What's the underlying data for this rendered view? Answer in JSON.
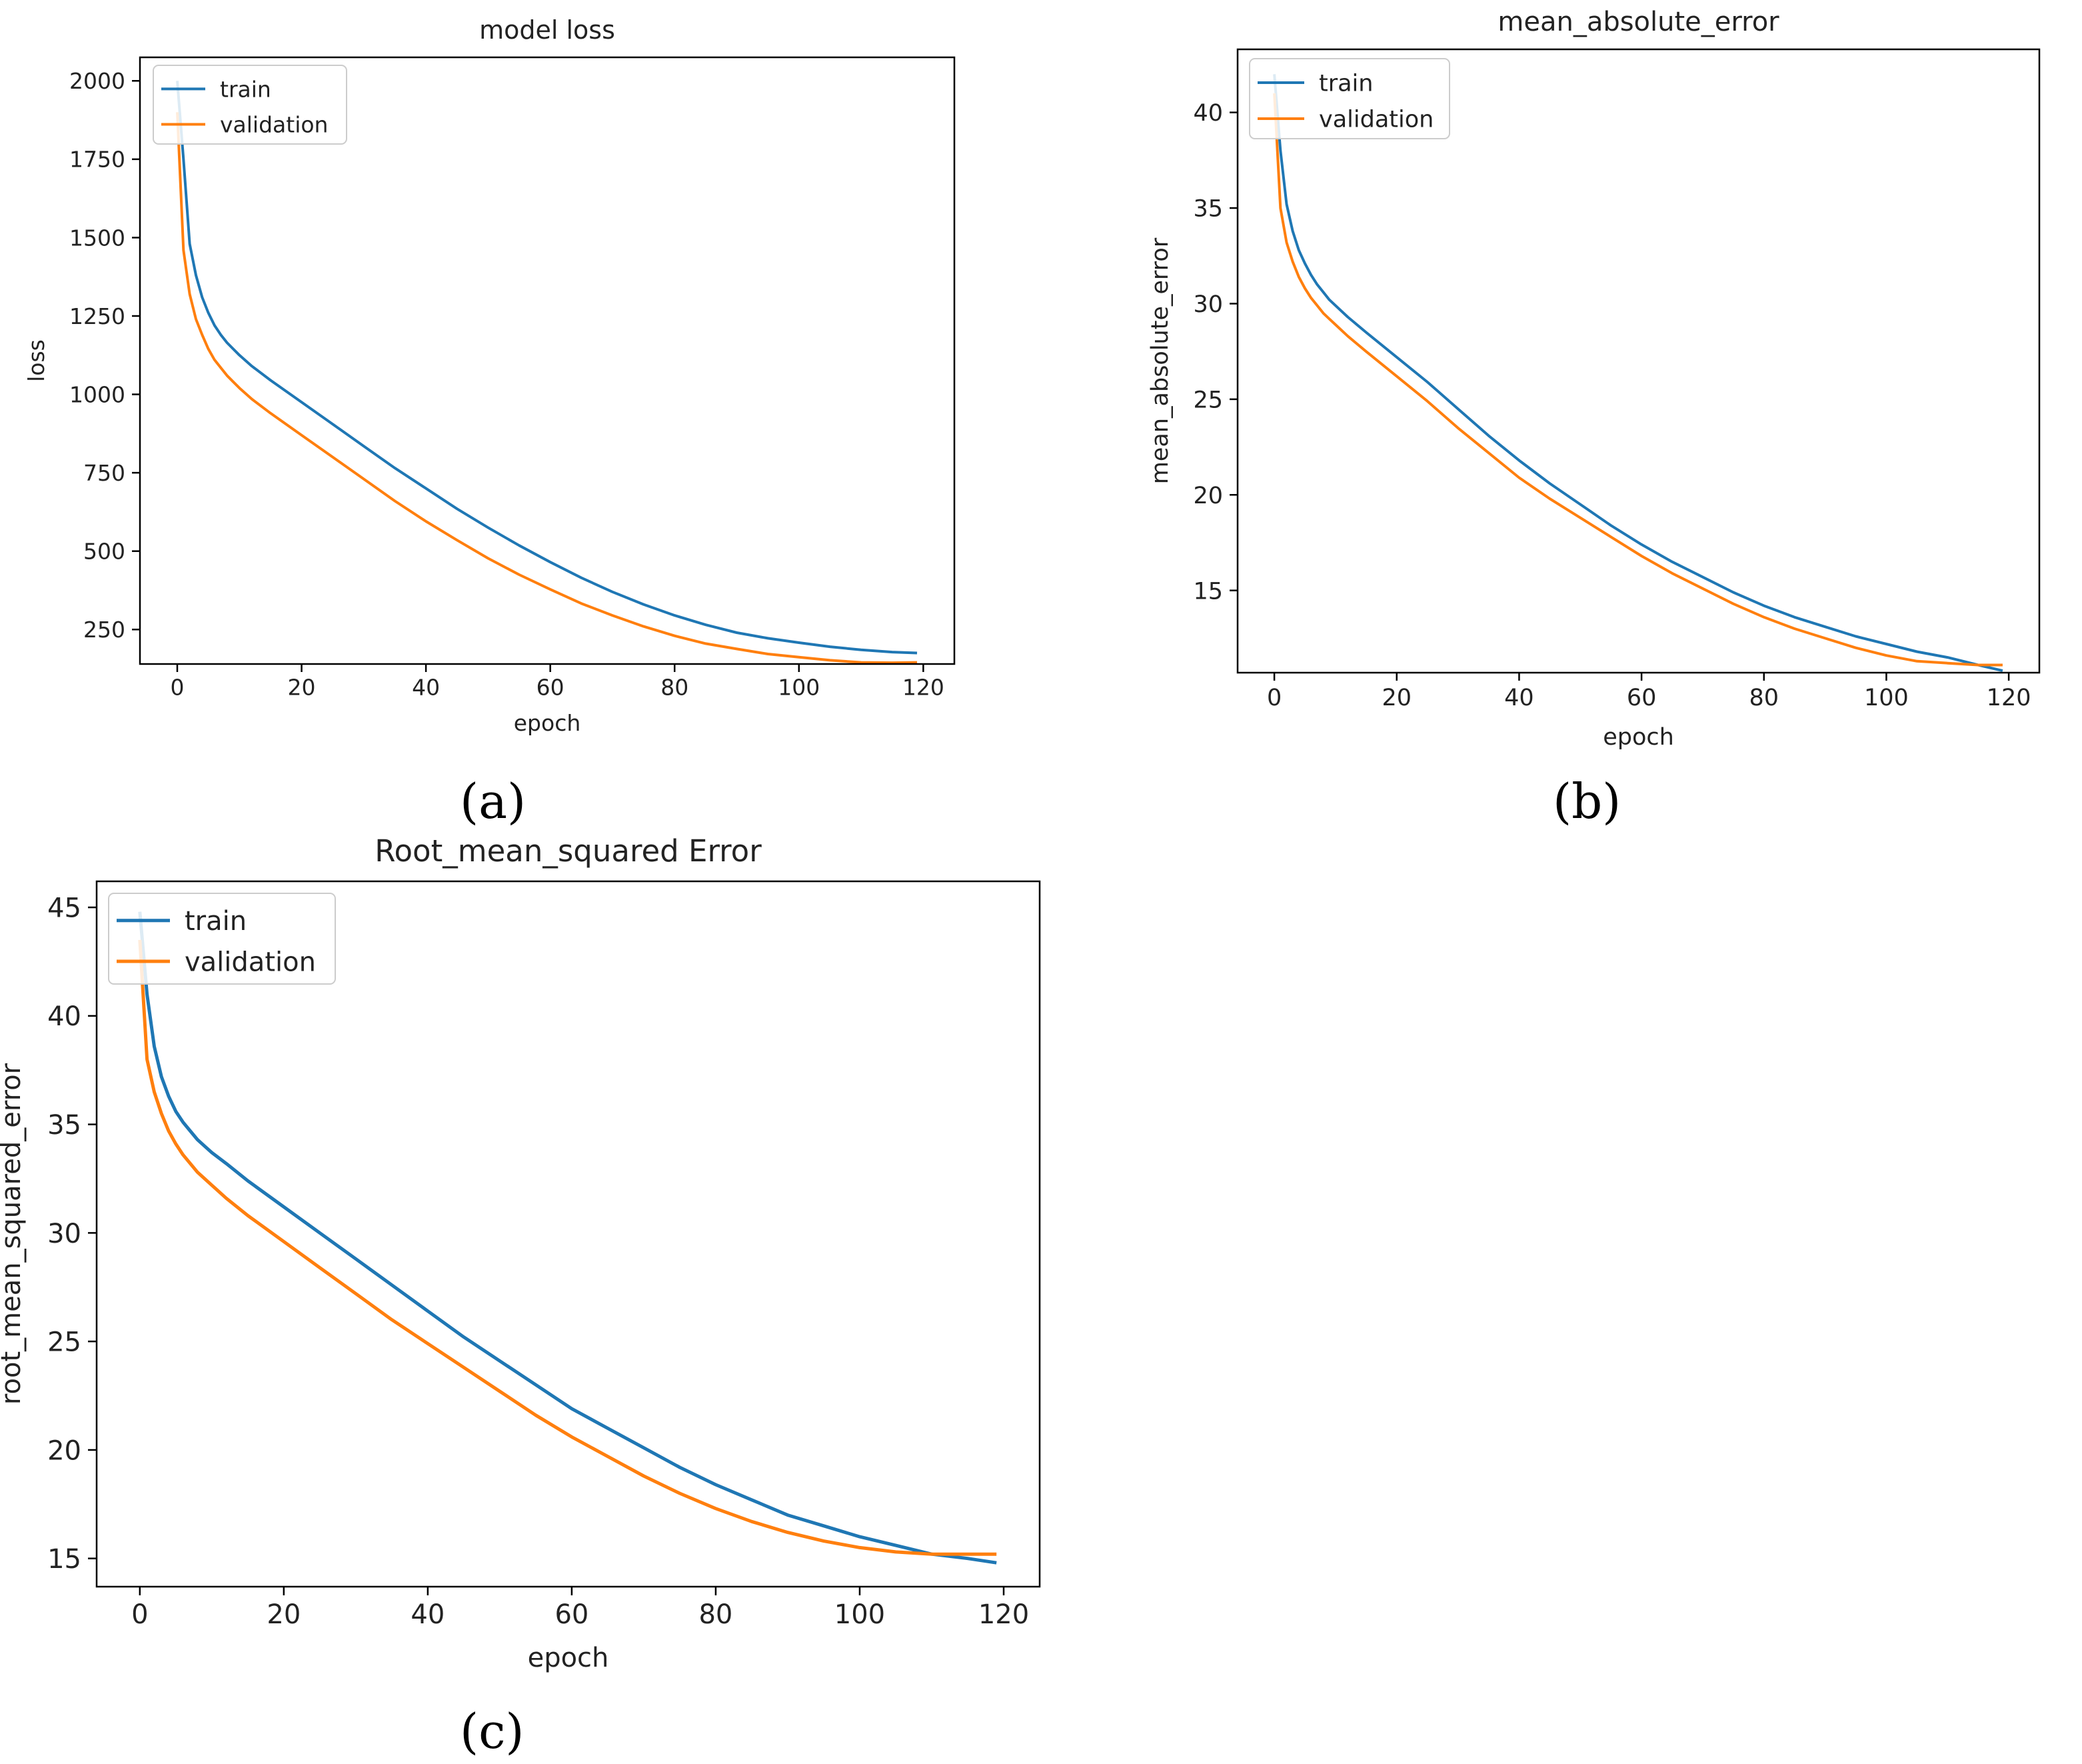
{
  "colors": {
    "train": "#1f77b4",
    "validation": "#ff7f0e",
    "axis": "#000000",
    "legendBorder": "#cccccc"
  },
  "chart_data": [
    {
      "type": "line",
      "panel_label": "(a)",
      "title": "model loss",
      "xlabel": "epoch",
      "ylabel": "loss",
      "xlim": [
        -6,
        125
      ],
      "ylim": [
        140,
        2075
      ],
      "xticks": [
        0,
        20,
        40,
        60,
        80,
        100,
        120
      ],
      "yticks": [
        250,
        500,
        750,
        1000,
        1250,
        1500,
        1750,
        2000
      ],
      "ytick_labels": [
        "250",
        "500",
        "750",
        "1000",
        "1250",
        "1500",
        "1750",
        "2000"
      ],
      "grid": false,
      "legend_loc": "upper-left",
      "series": [
        {
          "name": "train",
          "x": [
            0,
            1,
            2,
            3,
            4,
            5,
            6,
            7,
            8,
            9,
            10,
            12,
            15,
            20,
            25,
            30,
            35,
            40,
            45,
            50,
            55,
            60,
            65,
            70,
            75,
            80,
            85,
            90,
            95,
            100,
            105,
            110,
            115,
            119
          ],
          "values": [
            2000,
            1750,
            1480,
            1380,
            1310,
            1260,
            1220,
            1190,
            1165,
            1145,
            1125,
            1090,
            1045,
            975,
            905,
            835,
            765,
            700,
            635,
            575,
            518,
            465,
            415,
            370,
            330,
            295,
            265,
            240,
            222,
            208,
            195,
            185,
            178,
            175
          ]
        },
        {
          "name": "validation",
          "x": [
            0,
            1,
            2,
            3,
            4,
            5,
            6,
            7,
            8,
            9,
            10,
            12,
            15,
            20,
            25,
            30,
            35,
            40,
            45,
            50,
            55,
            60,
            65,
            70,
            75,
            80,
            85,
            90,
            95,
            100,
            105,
            110,
            115,
            119
          ],
          "values": [
            1900,
            1460,
            1320,
            1240,
            1190,
            1145,
            1110,
            1085,
            1060,
            1040,
            1020,
            985,
            940,
            870,
            800,
            730,
            660,
            595,
            535,
            477,
            425,
            378,
            333,
            295,
            260,
            230,
            205,
            188,
            172,
            162,
            152,
            145,
            144,
            145
          ]
        }
      ]
    },
    {
      "type": "line",
      "panel_label": "(b)",
      "title": "mean_absolute_error",
      "xlabel": "epoch",
      "ylabel": "mean_absolute_error",
      "xlim": [
        -6,
        125
      ],
      "ylim": [
        10.7,
        43.3
      ],
      "xticks": [
        0,
        20,
        40,
        60,
        80,
        100,
        120
      ],
      "yticks": [
        15,
        20,
        25,
        30,
        35,
        40
      ],
      "ytick_labels": [
        "15",
        "20",
        "25",
        "30",
        "35",
        "40"
      ],
      "grid": false,
      "legend_loc": "upper-left",
      "series": [
        {
          "name": "train",
          "x": [
            0,
            1,
            2,
            3,
            4,
            5,
            6,
            7,
            8,
            9,
            10,
            12,
            15,
            20,
            25,
            30,
            35,
            40,
            45,
            50,
            55,
            60,
            65,
            70,
            75,
            80,
            85,
            90,
            95,
            100,
            105,
            110,
            115,
            119
          ],
          "values": [
            42,
            38,
            35.2,
            33.8,
            32.8,
            32.1,
            31.5,
            31,
            30.6,
            30.2,
            29.9,
            29.3,
            28.5,
            27.2,
            25.9,
            24.5,
            23.1,
            21.8,
            20.6,
            19.5,
            18.4,
            17.4,
            16.5,
            15.7,
            14.9,
            14.2,
            13.6,
            13.1,
            12.6,
            12.2,
            11.8,
            11.5,
            11.1,
            10.8
          ]
        },
        {
          "name": "validation",
          "x": [
            0,
            1,
            2,
            3,
            4,
            5,
            6,
            7,
            8,
            9,
            10,
            12,
            15,
            20,
            25,
            30,
            35,
            40,
            45,
            50,
            55,
            60,
            65,
            70,
            75,
            80,
            85,
            90,
            95,
            100,
            105,
            110,
            115,
            119
          ],
          "values": [
            41,
            35,
            33.2,
            32.2,
            31.4,
            30.8,
            30.3,
            29.9,
            29.5,
            29.2,
            28.9,
            28.3,
            27.5,
            26.2,
            24.9,
            23.5,
            22.2,
            20.9,
            19.8,
            18.8,
            17.8,
            16.8,
            15.9,
            15.1,
            14.3,
            13.6,
            13,
            12.5,
            12,
            11.6,
            11.3,
            11.2,
            11.1,
            11.1
          ]
        }
      ]
    },
    {
      "type": "line",
      "panel_label": "(c)",
      "title": "Root_mean_squared Error",
      "xlabel": "epoch",
      "ylabel": "root_mean_squared_error",
      "xlim": [
        -6,
        125
      ],
      "ylim": [
        13.7,
        46.2
      ],
      "xticks": [
        0,
        20,
        40,
        60,
        80,
        100,
        120
      ],
      "yticks": [
        15,
        20,
        25,
        30,
        35,
        40,
        45
      ],
      "ytick_labels": [
        "15",
        "20",
        "25",
        "30",
        "35",
        "40",
        "45"
      ],
      "grid": false,
      "legend_loc": "upper-left",
      "series": [
        {
          "name": "train",
          "x": [
            0,
            1,
            2,
            3,
            4,
            5,
            6,
            7,
            8,
            9,
            10,
            12,
            15,
            20,
            25,
            30,
            35,
            40,
            45,
            50,
            55,
            60,
            65,
            70,
            75,
            80,
            85,
            90,
            95,
            100,
            105,
            110,
            115,
            119
          ],
          "values": [
            44.8,
            41,
            38.6,
            37.2,
            36.3,
            35.6,
            35.1,
            34.7,
            34.3,
            34,
            33.7,
            33.2,
            32.4,
            31.2,
            30,
            28.8,
            27.6,
            26.4,
            25.2,
            24.1,
            23,
            21.9,
            21,
            20.1,
            19.2,
            18.4,
            17.7,
            17,
            16.5,
            16,
            15.6,
            15.2,
            15,
            14.8
          ]
        },
        {
          "name": "validation",
          "x": [
            0,
            1,
            2,
            3,
            4,
            5,
            6,
            7,
            8,
            9,
            10,
            12,
            15,
            20,
            25,
            30,
            35,
            40,
            45,
            50,
            55,
            60,
            65,
            70,
            75,
            80,
            85,
            90,
            95,
            100,
            105,
            110,
            115,
            119
          ],
          "values": [
            43.5,
            38,
            36.5,
            35.5,
            34.7,
            34.1,
            33.6,
            33.2,
            32.8,
            32.5,
            32.2,
            31.6,
            30.8,
            29.6,
            28.4,
            27.2,
            26,
            24.9,
            23.8,
            22.7,
            21.6,
            20.6,
            19.7,
            18.8,
            18,
            17.3,
            16.7,
            16.2,
            15.8,
            15.5,
            15.3,
            15.2,
            15.2,
            15.2
          ]
        }
      ]
    }
  ]
}
